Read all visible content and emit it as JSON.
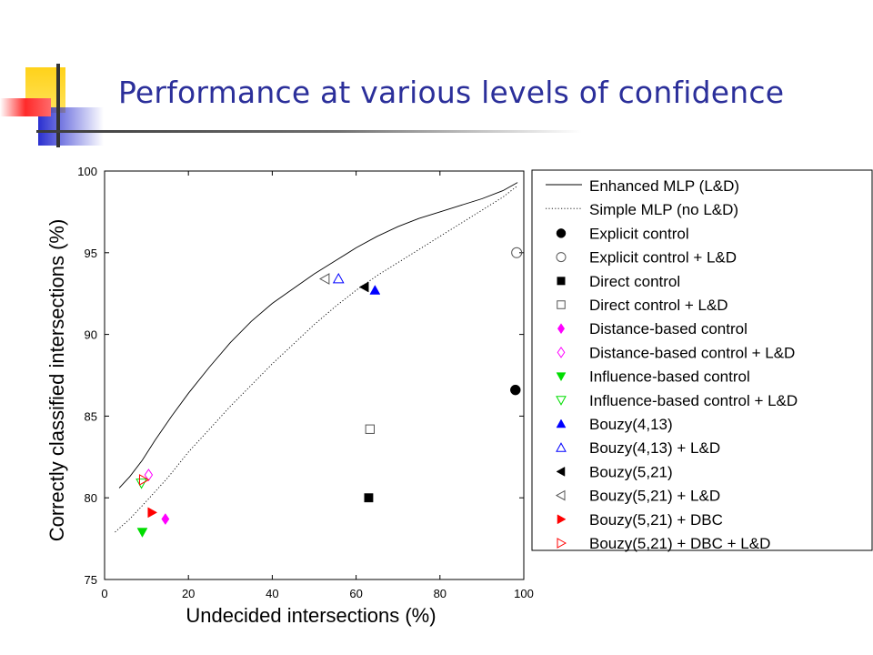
{
  "slide": {
    "title": "Performance at various levels of confidence",
    "colors": {
      "title": "#2b2f9a",
      "deco_yellow": "#ffd21a",
      "deco_blue": "#2a2fd0",
      "deco_red": "#ff2a2a"
    }
  },
  "chart_data": {
    "type": "scatter",
    "title": "",
    "xlabel": "Undecided intersections (%)",
    "ylabel": "Correctly classified intersections (%)",
    "xlim": [
      0,
      100
    ],
    "ylim": [
      75,
      100
    ],
    "xticks": [
      0,
      20,
      40,
      60,
      80,
      100
    ],
    "yticks": [
      75,
      80,
      85,
      90,
      95,
      100
    ],
    "grid": false,
    "legend_position": "right",
    "lines": [
      {
        "name": "Enhanced MLP (L&D)",
        "style": "solid",
        "x": [
          3.5,
          6,
          9,
          12,
          16,
          20,
          25,
          30,
          35,
          40,
          45,
          50,
          55,
          60,
          65,
          70,
          75,
          80,
          85,
          90,
          95,
          98.5
        ],
        "y": [
          80.6,
          81.3,
          82.3,
          83.5,
          85.0,
          86.4,
          88.0,
          89.5,
          90.8,
          91.9,
          92.8,
          93.7,
          94.5,
          95.3,
          96.0,
          96.6,
          97.1,
          97.5,
          97.9,
          98.3,
          98.8,
          99.3
        ]
      },
      {
        "name": "Simple MLP (no L&D)",
        "style": "dotted",
        "x": [
          2.5,
          6,
          10,
          15,
          20,
          25,
          30,
          35,
          40,
          45,
          50,
          55,
          60,
          65,
          70,
          75,
          80,
          85,
          90,
          95,
          98.5
        ],
        "y": [
          77.9,
          78.7,
          79.8,
          81.2,
          82.8,
          84.2,
          85.6,
          86.9,
          88.2,
          89.4,
          90.6,
          91.7,
          92.7,
          93.6,
          94.4,
          95.2,
          96.0,
          96.8,
          97.6,
          98.4,
          99.1
        ]
      }
    ],
    "series": [
      {
        "name": "Explicit control",
        "marker": "circle",
        "color": "#000000",
        "filled": true,
        "x": 98,
        "y": 86.6
      },
      {
        "name": "Explicit control + L&D",
        "marker": "circle",
        "color": "#555555",
        "filled": false,
        "x": 98.3,
        "y": 95.0
      },
      {
        "name": "Direct control",
        "marker": "square",
        "color": "#000000",
        "filled": true,
        "x": 63,
        "y": 80.0
      },
      {
        "name": "Direct control + L&D",
        "marker": "square",
        "color": "#555555",
        "filled": false,
        "x": 63.3,
        "y": 84.2
      },
      {
        "name": "Distance-based control",
        "marker": "diamond",
        "color": "#ff00ff",
        "filled": true,
        "x": 14.5,
        "y": 78.7
      },
      {
        "name": "Distance-based control + L&D",
        "marker": "diamond",
        "color": "#ff00ff",
        "filled": false,
        "x": 10.5,
        "y": 81.4
      },
      {
        "name": "Influence-based control",
        "marker": "triangle-down",
        "color": "#00dd00",
        "filled": true,
        "x": 9,
        "y": 77.9
      },
      {
        "name": "Influence-based control + L&D",
        "marker": "triangle-down",
        "color": "#00dd00",
        "filled": false,
        "x": 8.8,
        "y": 80.9
      },
      {
        "name": "Bouzy(4,13)",
        "marker": "triangle-up",
        "color": "#0000ff",
        "filled": true,
        "x": 64.5,
        "y": 92.7
      },
      {
        "name": "Bouzy(4,13) + L&D",
        "marker": "triangle-up",
        "color": "#0000ff",
        "filled": false,
        "x": 55.8,
        "y": 93.4
      },
      {
        "name": "Bouzy(5,21)",
        "marker": "triangle-left",
        "color": "#000000",
        "filled": true,
        "x": 62,
        "y": 92.9
      },
      {
        "name": "Bouzy(5,21) + L&D",
        "marker": "triangle-left",
        "color": "#555555",
        "filled": false,
        "x": 52.6,
        "y": 93.4
      },
      {
        "name": "Bouzy(5,21) + DBC",
        "marker": "triangle-right",
        "color": "#ff0000",
        "filled": true,
        "x": 11.3,
        "y": 79.1
      },
      {
        "name": "Bouzy(5,21) + DBC + L&D",
        "marker": "triangle-right",
        "color": "#ff0000",
        "filled": false,
        "x": 9.3,
        "y": 81.1
      }
    ]
  }
}
